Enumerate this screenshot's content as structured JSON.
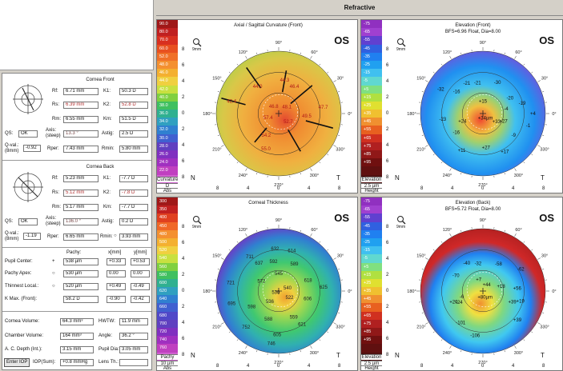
{
  "app_title": "Refractive",
  "front": {
    "title": "Cornea Front",
    "rf": "6.71 mm",
    "rs": "6.39 mm",
    "rm": "6.55 mm",
    "k1": "50.3 D",
    "k2": "52.8 D",
    "km": "51.5 D",
    "qs": "OK",
    "axis_steep": "13.3 °",
    "astig": "2.5 D",
    "qval": "-0.92",
    "rper": "7.43 mm",
    "rmin": "5.80 mm"
  },
  "back": {
    "title": "Cornea Back",
    "rf": "5.23 mm",
    "rs": "5.12 mm",
    "rm": "5.17 mm",
    "k1": "-7.7 D",
    "k2": "-7.8 D",
    "km": "-7.7 D",
    "qs": "OK",
    "axis_steep": "136.0 °",
    "astig": "0.2 D",
    "qval": "-1.19",
    "rper": "6.65 mm",
    "rmin": "3.93 mm"
  },
  "labels": {
    "rf": "Rf:",
    "rs": "Rs:",
    "rm": "Rm:",
    "k1": "K1:",
    "k2": "K2:",
    "km": "Km:",
    "qs": "QS:",
    "axis": "Axis:",
    "steep": "(steep)",
    "astig": "Astig:",
    "qval": "Q-val.:",
    "qval_unit": "(8mm)",
    "rper": "Rper:",
    "rmin": "Rmin:",
    "pachy": "Pachy:",
    "xmm": "x[mm]",
    "ymm": "y[mm]",
    "vol": "Cornea Volume:",
    "hwtw": "HWTW:",
    "chamber_vol": "Chamber Volume:",
    "angle": "Angle:",
    "acd": "A. C. Depth (Int.):",
    "pupil_dia": "Pupil Dia:",
    "iop_sum": "IOP(Sum):",
    "lens_th": "Lens Th.:"
  },
  "pachy_rows": [
    {
      "label": "Pupil Center:",
      "marker": "+",
      "pachy": "538 µm",
      "x": "+0.33",
      "y": "+0.53"
    },
    {
      "label": "Pachy Apex:",
      "marker": "○",
      "pachy": "530 µm",
      "x": "0.00",
      "y": "0.00"
    },
    {
      "label": "Thinnest Local.:",
      "marker": "○",
      "pachy": "520 µm",
      "x": "+0.49",
      "y": "-0.49"
    },
    {
      "label": "K Max. (Front):",
      "marker": "",
      "pachy": "58.2 D",
      "x": "-0.90",
      "y": "-0.42"
    }
  ],
  "bottom": {
    "cornea_volume": "64.3 mm³",
    "hwtw": "11.9 mm",
    "chamber_volume": "164 mm³",
    "angle": "36.2 °",
    "ac_depth": "3.15 mm",
    "pupil_dia": "3.05 mm",
    "enter_iop": "Enter IOP",
    "iop_sum": "+0.8 mmHg",
    "lens_th": ""
  },
  "maps": {
    "curv": {
      "title": "Axial / Sagittal Curvature (Front)",
      "eye": "OS",
      "subtitle": "",
      "foot_top": "D",
      "foot_name": "Curvature",
      "foot_unit": "Abs",
      "scale": [
        [
          "90.0",
          "#a01818"
        ],
        [
          "80.0",
          "#c02020"
        ],
        [
          "70.0",
          "#d83020"
        ],
        [
          "60.0",
          "#e85020"
        ],
        [
          "52.0",
          "#f07028"
        ],
        [
          "48.0",
          "#f49030"
        ],
        [
          "46.0",
          "#f4b030"
        ],
        [
          "44.0",
          "#f0d040"
        ],
        [
          "42.0",
          "#c8e040"
        ],
        [
          "40.0",
          "#80d040"
        ],
        [
          "38.0",
          "#40c060"
        ],
        [
          "36.0",
          "#30b090"
        ],
        [
          "34.0",
          "#30a0c0"
        ],
        [
          "32.0",
          "#3080d0"
        ],
        [
          "30.0",
          "#4060d0"
        ],
        [
          "28.0",
          "#6040c0"
        ],
        [
          "26.0",
          "#8030c0"
        ],
        [
          "24.0",
          "#a030c0"
        ],
        [
          "22.0",
          "#c040c0"
        ],
        [
          "20.0",
          "#d060d0"
        ]
      ],
      "values": [
        "44.3",
        "46.4",
        "44.0",
        "42.4",
        "46.8",
        "48.1",
        "57.4",
        "52.7",
        "49.5",
        "47.7",
        "54.2",
        "55.0"
      ]
    },
    "elevf": {
      "title": "Elevation (Front)",
      "eye": "OS",
      "subtitle": "BFS=6.96 Float, Dia=8.00",
      "foot_top": "2.5 µm",
      "foot_name": "Elevation",
      "foot_unit": "Height",
      "scale": [
        [
          "-75",
          "#9030c0"
        ],
        [
          "-65",
          "#a040d0"
        ],
        [
          "-55",
          "#6040d0"
        ],
        [
          "-45",
          "#3060e0"
        ],
        [
          "-35",
          "#2080f0"
        ],
        [
          "-25",
          "#20a0f0"
        ],
        [
          "-15",
          "#40c0f0"
        ],
        [
          "-5",
          "#60d8d0"
        ],
        [
          "+5",
          "#80e080"
        ],
        [
          "+15",
          "#b0e040"
        ],
        [
          "+25",
          "#e0e030"
        ],
        [
          "+35",
          "#f0c030"
        ],
        [
          "+45",
          "#f09030"
        ],
        [
          "+55",
          "#e86020"
        ],
        [
          "+65",
          "#d03020"
        ],
        [
          "+75",
          "#b02020"
        ],
        [
          "+85",
          "#901818"
        ],
        [
          "+95",
          "#701010"
        ],
        [
          "",
          "#601010"
        ],
        [
          "",
          "#501010"
        ]
      ],
      "values": [
        "-21",
        "-30",
        "-16",
        "-21",
        "-32",
        "-20",
        "-23",
        "+15",
        "-19",
        "-4",
        "+24",
        "+33",
        "+34µm",
        "+27",
        "-16",
        "+27",
        "+11",
        "+17",
        "-9",
        "-1",
        "+4"
      ]
    },
    "thick": {
      "title": "Corneal Thickness",
      "eye": "OS",
      "subtitle": "",
      "foot_top": "10 µm",
      "foot_name": "Pachy",
      "foot_unit": "Abs",
      "scale": [
        [
          "300",
          "#a01818"
        ],
        [
          "350",
          "#c02020"
        ],
        [
          "400",
          "#e04020"
        ],
        [
          "450",
          "#f06828"
        ],
        [
          "480",
          "#f49030"
        ],
        [
          "500",
          "#f4b030"
        ],
        [
          "520",
          "#f0d040"
        ],
        [
          "540",
          "#c8e040"
        ],
        [
          "560",
          "#80d040"
        ],
        [
          "580",
          "#40c060"
        ],
        [
          "600",
          "#30b090"
        ],
        [
          "620",
          "#30a0c0"
        ],
        [
          "640",
          "#3080d0"
        ],
        [
          "660",
          "#4060d0"
        ],
        [
          "680",
          "#5048c8"
        ],
        [
          "700",
          "#6040c0"
        ],
        [
          "720",
          "#8030c0"
        ],
        [
          "740",
          "#a030c0"
        ],
        [
          "760",
          "#c040c0"
        ],
        [
          "800",
          "#d060d0"
        ]
      ],
      "values": [
        "632",
        "614",
        "711",
        "637",
        "592",
        "589",
        "721",
        "572",
        "545",
        "618",
        "695",
        "530",
        "540",
        "536",
        "522",
        "598",
        "606",
        "625",
        "588",
        "559",
        "752",
        "605",
        "621",
        "746"
      ]
    },
    "elevb": {
      "title": "Elevation (Back)",
      "eye": "OS",
      "subtitle": "BFS=5.72 Float, Dia=8.00",
      "foot_top": "2.5 µm",
      "foot_name": "Elevation",
      "foot_unit": "Height",
      "scale": [
        [
          "-75",
          "#9030c0"
        ],
        [
          "-65",
          "#a040d0"
        ],
        [
          "-55",
          "#6040d0"
        ],
        [
          "-45",
          "#3060e0"
        ],
        [
          "-35",
          "#2080f0"
        ],
        [
          "-25",
          "#20a0f0"
        ],
        [
          "-15",
          "#40c0f0"
        ],
        [
          "-5",
          "#60d8d0"
        ],
        [
          "+5",
          "#80e080"
        ],
        [
          "+15",
          "#b0e040"
        ],
        [
          "+25",
          "#e0e030"
        ],
        [
          "+35",
          "#f0c030"
        ],
        [
          "+45",
          "#f09030"
        ],
        [
          "+55",
          "#e86020"
        ],
        [
          "+65",
          "#d03020"
        ],
        [
          "+75",
          "#b02020"
        ],
        [
          "+85",
          "#901818"
        ],
        [
          "+95",
          "#701010"
        ],
        [
          "",
          "#601010"
        ],
        [
          "",
          "#501010"
        ]
      ],
      "values": [
        "-40",
        "-70",
        "-32",
        "-62",
        "-58",
        "+7",
        "+56",
        "+18",
        "+44",
        "-24",
        "+80µm",
        "+39",
        "+39",
        "-101",
        "-106",
        "-6",
        "+26",
        "+19"
      ]
    }
  },
  "axes": {
    "y": [
      "8",
      "6",
      "4",
      "2",
      "0",
      "2",
      "4",
      "6",
      "8"
    ],
    "x": [
      "8",
      "4",
      "0",
      "4",
      "8"
    ],
    "deg": [
      "90°",
      "120°",
      "60°",
      "150°",
      "30°",
      "180°",
      "0°",
      "210°",
      "330°",
      "240°",
      "300°",
      "270°"
    ],
    "n": "N",
    "t": "T",
    "mm": "9mm"
  }
}
